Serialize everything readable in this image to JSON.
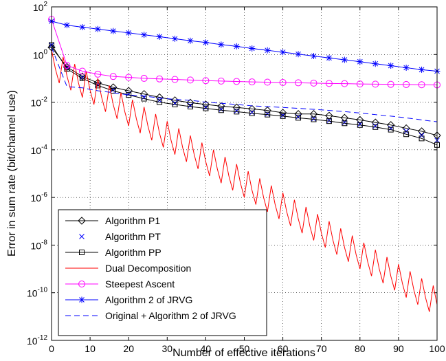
{
  "chart_data": {
    "type": "line",
    "xlabel": "Number of effective iterations",
    "ylabel": "Error in sum rate (bit/channel use)",
    "xlim": [
      0,
      100
    ],
    "xticks": [
      0,
      10,
      20,
      30,
      40,
      50,
      60,
      70,
      80,
      90,
      100
    ],
    "ylim": [
      1e-12,
      100
    ],
    "yscale": "log",
    "yticks": [
      {
        "value": 1e-12,
        "label": "10^-12"
      },
      {
        "value": 1e-10,
        "label": "10^-10"
      },
      {
        "value": 1e-08,
        "label": "10^-8"
      },
      {
        "value": 1e-06,
        "label": "10^-6"
      },
      {
        "value": 0.0001,
        "label": "10^-4"
      },
      {
        "value": 0.01,
        "label": "10^-2"
      },
      {
        "value": 1,
        "label": "10^0"
      },
      {
        "value": 100,
        "label": "10^2"
      }
    ],
    "grid": true,
    "legend": "lower left",
    "x": [
      0,
      4,
      8,
      12,
      16,
      20,
      24,
      28,
      32,
      36,
      40,
      44,
      48,
      52,
      56,
      60,
      64,
      68,
      72,
      76,
      80,
      84,
      88,
      92,
      96,
      100
    ],
    "series": [
      {
        "name": "Algorithm P1",
        "color": "#000000",
        "marker": "diamond",
        "line": "solid",
        "values": [
          2.0,
          0.3,
          0.12,
          0.065,
          0.042,
          0.03,
          0.022,
          0.016,
          0.012,
          0.0095,
          0.008,
          0.0068,
          0.006,
          0.0052,
          0.0045,
          0.0036,
          0.0032,
          0.0032,
          0.0027,
          0.0022,
          0.0018,
          0.0014,
          0.0011,
          0.0008,
          0.0006,
          0.0004
        ]
      },
      {
        "name": "Algorithm PT",
        "color": "#0000ff",
        "marker": "x",
        "line": "none",
        "values": [
          2.5,
          0.28,
          0.11,
          0.055,
          0.033,
          0.022,
          0.016,
          0.012,
          0.009,
          0.0072,
          0.006,
          0.005,
          0.0043,
          0.0037,
          0.0032,
          0.0028,
          0.0024,
          0.002,
          0.0017,
          0.0014,
          0.0012,
          0.001,
          0.0008,
          0.0006,
          0.0004,
          0.00025
        ]
      },
      {
        "name": "Algorithm PP",
        "color": "#000000",
        "marker": "square",
        "line": "solid",
        "values": [
          2.5,
          0.25,
          0.1,
          0.05,
          0.03,
          0.02,
          0.014,
          0.01,
          0.008,
          0.0065,
          0.0055,
          0.0046,
          0.004,
          0.0034,
          0.003,
          0.0026,
          0.0022,
          0.0019,
          0.0016,
          0.0013,
          0.0011,
          0.0009,
          0.0007,
          0.00045,
          0.0003,
          0.00016
        ]
      },
      {
        "name": "Dual Decomposition",
        "color": "#ff0000",
        "marker": "none",
        "line": "solid",
        "x": [
          0,
          1,
          2,
          3,
          4,
          5,
          6,
          7,
          8,
          9,
          10,
          11,
          12,
          13,
          14,
          15,
          16,
          17,
          18,
          19,
          20,
          21,
          22,
          23,
          24,
          25,
          26,
          27,
          28,
          29,
          30,
          31,
          32,
          33,
          34,
          35,
          36,
          37,
          38,
          39,
          40,
          41,
          42,
          43,
          44,
          45,
          46,
          47,
          48,
          49,
          50,
          51,
          52,
          53,
          54,
          55,
          56,
          57,
          58,
          59,
          60,
          61,
          62,
          63,
          64,
          65,
          66,
          67,
          68,
          69,
          70,
          71,
          72,
          73,
          74,
          75,
          76,
          77,
          78,
          79,
          80,
          81,
          82,
          83,
          84,
          85,
          86,
          87,
          88,
          89,
          90,
          91,
          92,
          93,
          94,
          95,
          96,
          97,
          98,
          99,
          100
        ],
        "values": [
          1.58,
          0.251,
          0.0631,
          0.794,
          0.126,
          0.0316,
          0.398,
          0.0631,
          0.0158,
          0.2,
          0.0316,
          0.00794,
          0.1,
          0.0158,
          0.00398,
          0.0501,
          0.00794,
          0.002,
          0.0251,
          0.00398,
          0.001,
          0.0126,
          0.002,
          0.000501,
          0.00631,
          0.001,
          0.000251,
          0.00316,
          0.000501,
          0.000126,
          0.00158,
          0.000251,
          6.31e-05,
          0.000794,
          0.000126,
          3.16e-05,
          0.000398,
          6.31e-05,
          1.58e-05,
          0.0002,
          3.16e-05,
          7.94e-06,
          0.0001,
          1.58e-05,
          3.98e-06,
          5.01e-05,
          7.94e-06,
          2e-06,
          2.51e-05,
          3.98e-06,
          1e-06,
          1.26e-05,
          2e-06,
          5.01e-07,
          6.31e-06,
          1e-06,
          2.51e-07,
          3.16e-06,
          5.01e-07,
          1.26e-07,
          1.58e-06,
          2.51e-07,
          6.31e-08,
          7.94e-07,
          1.26e-07,
          3.16e-08,
          3.98e-07,
          6.31e-08,
          1.58e-08,
          2e-07,
          3.16e-08,
          7.94e-09,
          1e-07,
          1.58e-08,
          3.98e-09,
          5.01e-08,
          7.94e-09,
          2e-09,
          2.51e-08,
          3.98e-09,
          1e-09,
          1.26e-08,
          2e-09,
          5.01e-10,
          6.31e-09,
          1e-09,
          2.51e-10,
          3.16e-09,
          5.01e-10,
          1.26e-10,
          1.58e-09,
          2.51e-10,
          6.31e-11,
          7.94e-10,
          1.26e-10,
          3.16e-11,
          3.98e-10,
          6.31e-11,
          1.58e-11,
          2e-10,
          3.16e-11
        ]
      },
      {
        "name": "Steepest Ascent",
        "color": "#ff00ff",
        "marker": "circle",
        "line": "solid",
        "values": [
          30,
          0.35,
          0.2,
          0.15,
          0.12,
          0.11,
          0.1,
          0.095,
          0.09,
          0.085,
          0.08,
          0.077,
          0.074,
          0.071,
          0.069,
          0.067,
          0.065,
          0.063,
          0.061,
          0.06,
          0.058,
          0.057,
          0.056,
          0.055,
          0.054,
          0.053
        ]
      },
      {
        "name": "Algorithm 2 of JRVG",
        "color": "#0000ff",
        "marker": "star",
        "line": "solid",
        "values": [
          25,
          17,
          14.1,
          11.7,
          9.7,
          8.1,
          6.7,
          5.6,
          4.6,
          3.8,
          3.2,
          2.6,
          2.2,
          1.8,
          1.5,
          1.25,
          1.04,
          0.86,
          0.72,
          0.6,
          0.5,
          0.41,
          0.34,
          0.28,
          0.23,
          0.2
        ]
      },
      {
        "name": "Original + Algorithm 2 of JRVG",
        "color": "#0000ff",
        "marker": "none",
        "line": "dashed",
        "values": [
          2,
          0.045,
          0.04,
          0.03,
          0.025,
          0.02,
          0.018,
          0.015,
          0.013,
          0.012,
          0.01,
          0.009,
          0.008,
          0.007,
          0.0065,
          0.006,
          0.0055,
          0.005,
          0.0045,
          0.004,
          0.0035,
          0.003,
          0.0026,
          0.0022,
          0.0018,
          0.0015
        ]
      }
    ]
  }
}
